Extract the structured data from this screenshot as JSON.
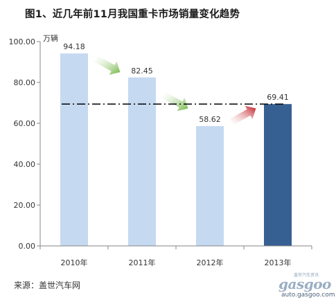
{
  "chart_data": {
    "type": "bar",
    "title": "图1、近几年前11月我国重卡市场销量变化趋势",
    "unit_label": "万辆",
    "categories": [
      "2010年",
      "2011年",
      "2012年",
      "2013年"
    ],
    "values": [
      94.18,
      82.45,
      58.62,
      69.41
    ],
    "value_labels": [
      "94.18",
      "82.45",
      "58.62",
      "69.41"
    ],
    "ylim": [
      0,
      100
    ],
    "yticks": [
      "0.00",
      "20.00",
      "40.00",
      "60.00",
      "80.00",
      "100.00"
    ],
    "ytick_values": [
      0,
      20,
      40,
      60,
      80,
      100
    ],
    "reference_line_value": 69.41,
    "bar_colors": [
      "#c5d9f1",
      "#c5d9f1",
      "#c5d9f1",
      "#376092"
    ],
    "arrows": [
      {
        "between": [
          0,
          1
        ],
        "direction": "down",
        "color": "#7cc242"
      },
      {
        "between": [
          1,
          2
        ],
        "direction": "down",
        "color": "#7cc242"
      },
      {
        "between": [
          2,
          3
        ],
        "direction": "up",
        "color": "#c0161d"
      }
    ],
    "grid": false,
    "legend": "none"
  },
  "source": "来源：盖世汽车网",
  "watermark": {
    "tagline": "盖世汽车资讯",
    "logo": "gasgoo",
    "url": "auto.gasgoo.com"
  }
}
